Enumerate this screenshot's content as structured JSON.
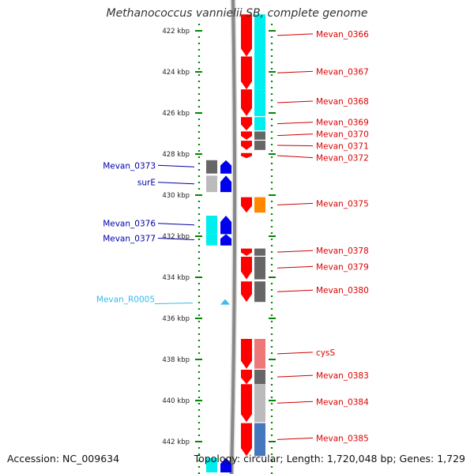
{
  "title": "Methanococcus vannielii SB, complete genome",
  "footer": {
    "accession": "Accession: NC_009634",
    "summary": "Topology: circular; Length: 1,720,048 bp; Genes: 1,729"
  },
  "colors": {
    "forward_gene": "#ff0000",
    "reverse_gene": "#0000ee",
    "forward_label": "#dd0000",
    "reverse_label": "#0000aa",
    "rna_label": "#33bbee",
    "ruler": "#008800",
    "backbone": "#888888",
    "cog_cyan": "#00eeee",
    "cog_dark_gray": "#666666",
    "cog_light_gray": "#bbbbbb",
    "cog_orange": "#ff8800",
    "cog_pink": "#ee7777",
    "cog_steel_blue": "#4477bb"
  },
  "axis": {
    "unit": "kbp",
    "ticks": [
      "422 kbp",
      "424 kbp",
      "426 kbp",
      "428 kbp",
      "430 kbp",
      "432 kbp",
      "434 kbp",
      "436 kbp",
      "438 kbp",
      "440 kbp",
      "442 kbp"
    ],
    "tick_values": [
      422,
      424,
      426,
      428,
      430,
      432,
      434,
      436,
      438,
      440,
      442
    ]
  },
  "genes": [
    {
      "id": "g0366",
      "label": "Mevan_0366",
      "strand": "forward",
      "start_kbp": 421.2,
      "end_kbp": 423.25,
      "category": "cyan",
      "labeled": true
    },
    {
      "id": "g0367",
      "label": "Mevan_0367",
      "strand": "forward",
      "start_kbp": 423.25,
      "end_kbp": 424.85,
      "category": "cyan",
      "labeled": true
    },
    {
      "id": "g0368",
      "label": "Mevan_0368",
      "strand": "forward",
      "start_kbp": 424.85,
      "end_kbp": 426.15,
      "category": "cyan",
      "labeled": true
    },
    {
      "id": "g0369",
      "label": "Mevan_0369",
      "strand": "forward",
      "start_kbp": 426.2,
      "end_kbp": 426.85,
      "category": "cyan",
      "labeled": true
    },
    {
      "id": "g0370",
      "label": "Mevan_0370",
      "strand": "forward",
      "start_kbp": 426.9,
      "end_kbp": 427.3,
      "category": "dark-gray",
      "labeled": true
    },
    {
      "id": "g0371",
      "label": "Mevan_0371",
      "strand": "forward",
      "start_kbp": 427.35,
      "end_kbp": 427.8,
      "category": "dark-gray",
      "labeled": true
    },
    {
      "id": "g0372",
      "label": "Mevan_0372",
      "strand": "forward",
      "start_kbp": 427.95,
      "end_kbp": 428.2,
      "category": "none",
      "labeled": true
    },
    {
      "id": "g0373",
      "label": "Mevan_0373",
      "strand": "reverse",
      "start_kbp": 428.3,
      "end_kbp": 428.95,
      "category": "dark-gray",
      "labeled": true
    },
    {
      "id": "gsurE",
      "label": "surE",
      "strand": "reverse",
      "start_kbp": 429.05,
      "end_kbp": 429.85,
      "category": "light-gray",
      "labeled": true
    },
    {
      "id": "g0375",
      "label": "Mevan_0375",
      "strand": "forward",
      "start_kbp": 430.1,
      "end_kbp": 430.85,
      "category": "orange",
      "labeled": true
    },
    {
      "id": "g0376",
      "label": "Mevan_0376",
      "strand": "reverse",
      "start_kbp": 431.0,
      "end_kbp": 431.9,
      "category": "cyan",
      "labeled": true
    },
    {
      "id": "g0377",
      "label": "Mevan_0377",
      "strand": "reverse",
      "start_kbp": 431.9,
      "end_kbp": 432.45,
      "category": "cyan",
      "labeled": true
    },
    {
      "id": "g0378",
      "label": "Mevan_0378",
      "strand": "forward",
      "start_kbp": 432.6,
      "end_kbp": 432.95,
      "category": "dark-gray",
      "labeled": true
    },
    {
      "id": "g0379",
      "label": "Mevan_0379",
      "strand": "forward",
      "start_kbp": 433.0,
      "end_kbp": 434.1,
      "category": "dark-gray",
      "labeled": true
    },
    {
      "id": "g0380",
      "label": "Mevan_0380",
      "strand": "forward",
      "start_kbp": 434.2,
      "end_kbp": 435.2,
      "category": "dark-gray",
      "labeled": true
    },
    {
      "id": "r0005",
      "label": "Mevan_R0005",
      "strand": "reverse",
      "start_kbp": 435.1,
      "end_kbp": 435.32,
      "category": "rna",
      "labeled": true
    },
    {
      "id": "gcysS",
      "label": "cysS",
      "strand": "forward",
      "start_kbp": 437.0,
      "end_kbp": 438.45,
      "category": "pink",
      "labeled": true
    },
    {
      "id": "g0383",
      "label": "Mevan_0383",
      "strand": "forward",
      "start_kbp": 438.5,
      "end_kbp": 439.2,
      "category": "dark-gray",
      "labeled": true
    },
    {
      "id": "g0384",
      "label": "Mevan_0384",
      "strand": "forward",
      "start_kbp": 439.2,
      "end_kbp": 441.05,
      "category": "light-gray",
      "labeled": true
    },
    {
      "id": "g0385",
      "label": "Mevan_0385",
      "strand": "forward",
      "start_kbp": 441.1,
      "end_kbp": 442.7,
      "category": "steel-blue",
      "labeled": true
    },
    {
      "id": "gbot1",
      "label": "",
      "strand": "reverse",
      "start_kbp": 442.8,
      "end_kbp": 443.5,
      "category": "cyan",
      "labeled": false
    }
  ]
}
